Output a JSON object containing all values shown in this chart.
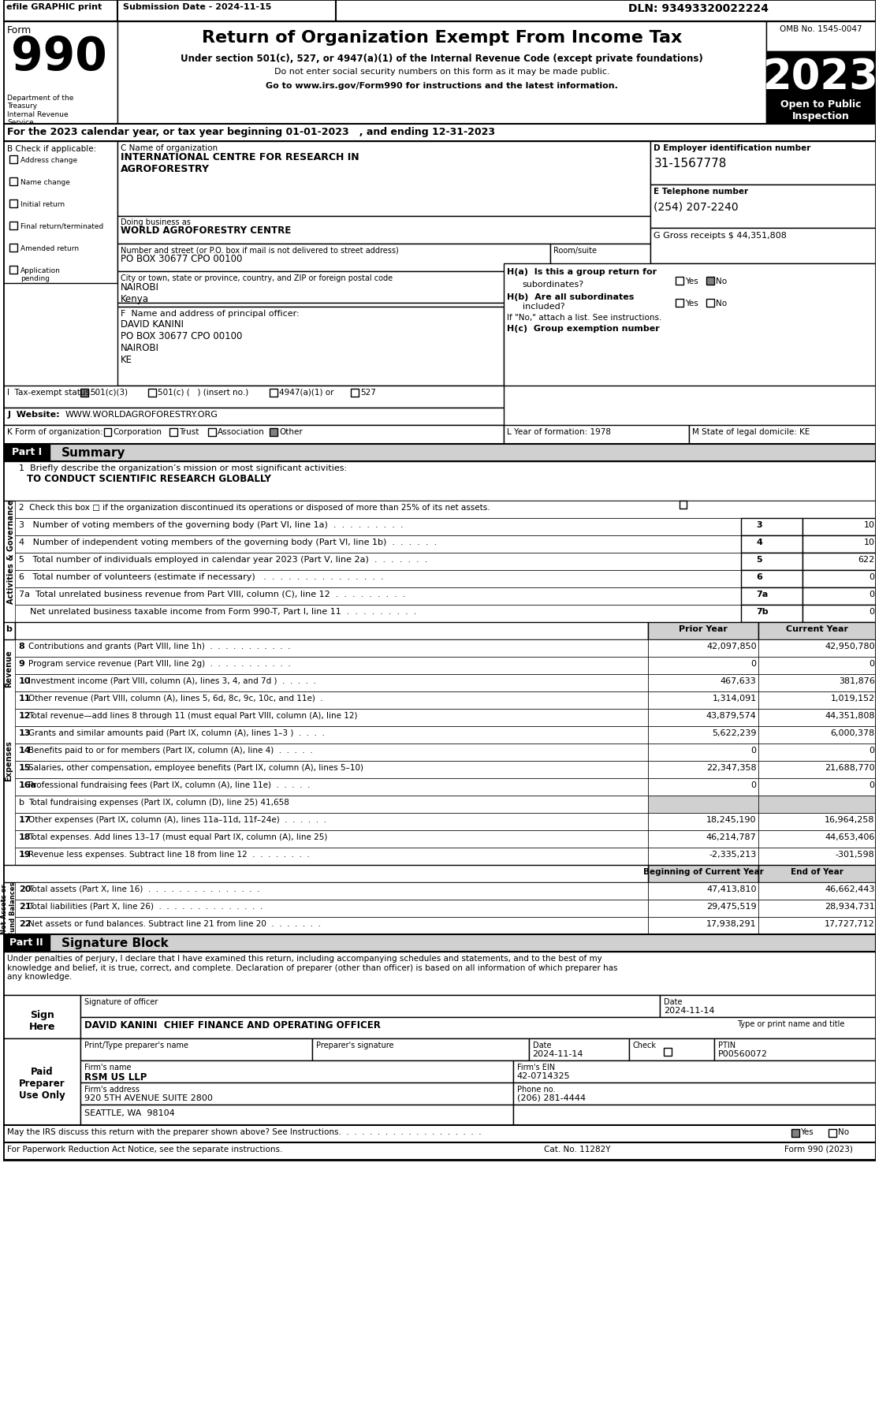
{
  "title_line": "Return of Organization Exempt From Income Tax",
  "subtitle1": "Under section 501(c), 527, or 4947(a)(1) of the Internal Revenue Code (except private foundations)",
  "subtitle2": "Do not enter social security numbers on this form as it may be made public.",
  "subtitle3": "Go to www.irs.gov/Form990 for instructions and the latest information.",
  "efile_text": "efile GRAPHIC print",
  "submission_date": "Submission Date - 2024-11-15",
  "dln": "DLN: 93493320022224",
  "omb": "OMB No. 1545-0047",
  "year": "2023",
  "open_to_public": "Open to Public\nInspection",
  "form_number": "990",
  "dept_treasury": "Department of the\nTreasury\nInternal Revenue\nService",
  "year_line": "For the 2023 calendar year, or tax year beginning 01-01-2023   , and ending 12-31-2023",
  "check_if": "B Check if applicable:",
  "checkboxes_b": [
    "Address change",
    "Name change",
    "Initial return",
    "Final return/terminated",
    "Amended return",
    "Application\npending"
  ],
  "org_name_label": "C Name of organization",
  "org_name": "INTERNATIONAL CENTRE FOR RESEARCH IN\nAGROFORESTRY",
  "dba_label": "Doing business as",
  "dba": "WORLD AGROFORESTRY CENTRE",
  "street_label": "Number and street (or P.O. box if mail is not delivered to street address)",
  "street": "PO BOX 30677 CPO 00100",
  "room_label": "Room/suite",
  "city_label": "City or town, state or province, country, and ZIP or foreign postal code",
  "city": "NAIROBI\nKenya",
  "employer_id_label": "D Employer identification number",
  "employer_id": "31-1567778",
  "phone_label": "E Telephone number",
  "phone": "(254) 207-2240",
  "gross_receipts": "G Gross receipts $ 44,351,808",
  "principal_officer_label": "F  Name and address of principal officer:",
  "principal_officer": "DAVID KANINI\nPO BOX 30677 CPO 00100\nNAIROBI\nKE",
  "ha_label": "H(a)  Is this a group return for",
  "ha_sub": "subordinates?",
  "ha_answer": "Yes  No",
  "hb_label": "H(b)  Are all subordinates",
  "hb_sub": "included?",
  "hb_answer": "Yes  No",
  "hc_label": "H(c)  Group exemption number",
  "hc_note": "If \"No,\" attach a list. See instructions.",
  "tax_exempt_label": "I  Tax-exempt status:",
  "tax_exempt_options": "501(c)(3)    501(c) (   ) (insert no.)    4947(a)(1) or    527",
  "website_label": "J  Website:",
  "website": "WWW.WORLDAGROFORESTRY.ORG",
  "k_label": "K Form of organization:",
  "k_options": "Corporation    Trust    Association    Other",
  "l_label": "L Year of formation: 1978",
  "m_label": "M State of legal domicile: KE",
  "part1_label": "Part I",
  "part1_title": "Summary",
  "line1_label": "1  Briefly describe the organization’s mission or most significant activities:",
  "line1_value": "TO CONDUCT SCIENTIFIC RESEARCH GLOBALLY",
  "line2": "2  Check this box □ if the organization discontinued its operations or disposed of more than 25% of its net assets.",
  "line3": "3   Number of voting members of the governing body (Part VI, line 1a)  .  .  .  .  .  .  .  .  .",
  "line3_num": "3",
  "line3_val": "10",
  "line4": "4   Number of independent voting members of the governing body (Part VI, line 1b)  .  .  .  .  .  .",
  "line4_num": "4",
  "line4_val": "10",
  "line5": "5   Total number of individuals employed in calendar year 2023 (Part V, line 2a)  .  .  .  .  .  .  .",
  "line5_num": "5",
  "line5_val": "622",
  "line6": "6   Total number of volunteers (estimate if necessary)   .  .  .  .  .  .  .  .  .  .  .  .  .  .  .",
  "line6_num": "6",
  "line6_val": "0",
  "line7a": "7a  Total unrelated business revenue from Part VIII, column (C), line 12  .  .  .  .  .  .  .  .  .",
  "line7a_num": "7a",
  "line7a_val": "0",
  "line7b": "    Net unrelated business taxable income from Form 990-T, Part I, line 11  .  .  .  .  .  .  .  .  .",
  "line7b_num": "7b",
  "line7b_val": "0",
  "col_prior": "Prior Year",
  "col_current": "Current Year",
  "revenue_rows": [
    {
      "num": "8",
      "label": "Contributions and grants (Part VIII, line 1h)  .  .  .  .  .  .  .  .  .  .  .",
      "prior": "42,097,850",
      "current": "42,950,780"
    },
    {
      "num": "9",
      "label": "Program service revenue (Part VIII, line 2g)  .  .  .  .  .  .  .  .  .  .  .",
      "prior": "0",
      "current": "0"
    },
    {
      "num": "10",
      "label": "Investment income (Part VIII, column (A), lines 3, 4, and 7d )  .  .  .  .  .",
      "prior": "467,633",
      "current": "381,876"
    },
    {
      "num": "11",
      "label": "Other revenue (Part VIII, column (A), lines 5, 6d, 8c, 9c, 10c, and 11e)  .",
      "prior": "1,314,091",
      "current": "1,019,152"
    },
    {
      "num": "12",
      "label": "Total revenue—add lines 8 through 11 (must equal Part VIII, column (A), line 12)",
      "prior": "43,879,574",
      "current": "44,351,808"
    }
  ],
  "expense_rows": [
    {
      "num": "13",
      "label": "Grants and similar amounts paid (Part IX, column (A), lines 1–3 )  .  .  .  .",
      "prior": "5,622,239",
      "current": "6,000,378"
    },
    {
      "num": "14",
      "label": "Benefits paid to or for members (Part IX, column (A), line 4)  .  .  .  .  .",
      "prior": "0",
      "current": "0"
    },
    {
      "num": "15",
      "label": "Salaries, other compensation, employee benefits (Part IX, column (A), lines 5–10)",
      "prior": "22,347,358",
      "current": "21,688,770"
    },
    {
      "num": "16a",
      "label": "Professional fundraising fees (Part IX, column (A), line 11e)  .  .  .  .  .",
      "prior": "0",
      "current": "0"
    },
    {
      "num": "b",
      "label": "Total fundraising expenses (Part IX, column (D), line 25) 41,658",
      "prior": "",
      "current": ""
    },
    {
      "num": "17",
      "label": "Other expenses (Part IX, column (A), lines 11a–11d, 11f–24e)  .  .  .  .  .  .",
      "prior": "18,245,190",
      "current": "16,964,258"
    },
    {
      "num": "18",
      "label": "Total expenses. Add lines 13–17 (must equal Part IX, column (A), line 25)",
      "prior": "46,214,787",
      "current": "44,653,406"
    },
    {
      "num": "19",
      "label": "Revenue less expenses. Subtract line 18 from line 12  .  .  .  .  .  .  .  .",
      "prior": "-2,335,213",
      "current": "-301,598"
    }
  ],
  "net_assets_header1": "Beginning of Current Year",
  "net_assets_header2": "End of Year",
  "net_asset_rows": [
    {
      "num": "20",
      "label": "Total assets (Part X, line 16)  .  .  .  .  .  .  .  .  .  .  .  .  .  .  .",
      "begin": "47,413,810",
      "end": "46,662,443"
    },
    {
      "num": "21",
      "label": "Total liabilities (Part X, line 26)  .  .  .  .  .  .  .  .  .  .  .  .  .  .",
      "begin": "29,475,519",
      "end": "28,934,731"
    },
    {
      "num": "22",
      "label": "Net assets or fund balances. Subtract line 21 from line 20  .  .  .  .  .  .  .",
      "begin": "17,938,291",
      "end": "17,727,712"
    }
  ],
  "part2_label": "Part II",
  "part2_title": "Signature Block",
  "sig_text": "Under penalties of perjury, I declare that I have examined this return, including accompanying schedules and statements, and to the best of my\nknowledge and belief, it is true, correct, and complete. Declaration of preparer (other than officer) is based on all information of which preparer has\nany knowledge.",
  "sign_here": "Sign\nHere",
  "sig_officer_label": "Signature of officer",
  "sig_date_label": "Date",
  "sig_date": "2024-11-14",
  "sig_name": "DAVID KANINI  CHIEF FINANCE AND OPERATING OFFICER",
  "sig_name_label": "Type or print name and title",
  "paid_preparer": "Paid\nPreparer\nUse Only",
  "preparer_name_label": "Print/Type preparer's name",
  "preparer_sig_label": "Preparer's signature",
  "preparer_date_label": "Date",
  "preparer_date": "2024-11-14",
  "preparer_check_label": "Check",
  "preparer_ptin_label": "PTIN",
  "preparer_ptin": "P00560072",
  "firm_name_label": "Firm's name",
  "firm_name": "RSM US LLP",
  "firm_ein_label": "Firm's EIN",
  "firm_ein": "42-0714325",
  "firm_address_label": "Firm's address",
  "firm_address": "920 5TH AVENUE SUITE 2800",
  "firm_city": "SEATTLE, WA  98104",
  "firm_phone_label": "Phone no.",
  "firm_phone": "(206) 281-4444",
  "discuss_label": "May the IRS discuss this return with the preparer shown above? See Instructions.  .  .  .  .  .  .  .  .  .  .  .  .  .  .  .  .  .  .",
  "discuss_answer": "Yes  No",
  "cat_no": "Cat. No. 11282Y",
  "form_footer": "Form 990 (2023)",
  "sidebar_labels": [
    "Activities & Governance",
    "Revenue",
    "Expenses",
    "Net Assets or\nFund Balances"
  ],
  "bg_color": "#ffffff",
  "border_color": "#000000",
  "header_bg": "#000000",
  "header_fg": "#ffffff",
  "shaded_bg": "#d0d0d0"
}
